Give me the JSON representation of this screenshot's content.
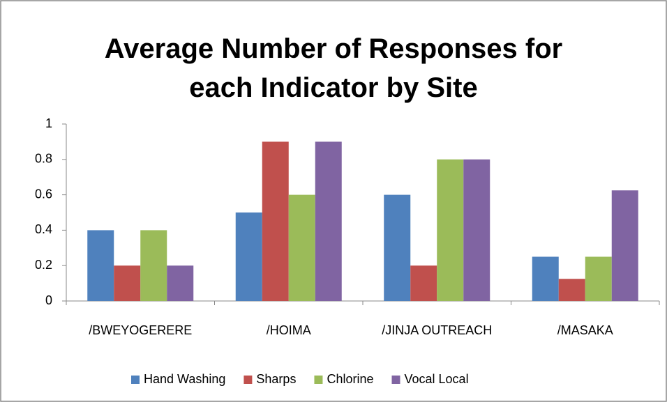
{
  "chart_data": {
    "type": "bar",
    "title": "Average Number of Responses for each Indicator by Site",
    "categories": [
      "/BWEYOGERERE",
      "/HOIMA",
      "/JINJA OUTREACH",
      "/MASAKA"
    ],
    "series": [
      {
        "name": "Hand Washing",
        "color": "#4f81bd",
        "values": [
          0.4,
          0.5,
          0.6,
          0.25
        ]
      },
      {
        "name": "Sharps",
        "color": "#c0504d",
        "values": [
          0.2,
          0.9,
          0.2,
          0.125
        ]
      },
      {
        "name": "Chlorine",
        "color": "#9bbb59",
        "values": [
          0.4,
          0.6,
          0.8,
          0.25
        ]
      },
      {
        "name": "Vocal Local",
        "color": "#8064a2",
        "values": [
          0.2,
          0.9,
          0.8,
          0.625
        ]
      }
    ],
    "ylim": [
      0,
      1
    ],
    "yticks": [
      0,
      0.2,
      0.4,
      0.6,
      0.8,
      1
    ],
    "grid": false,
    "legend": "bottom"
  }
}
